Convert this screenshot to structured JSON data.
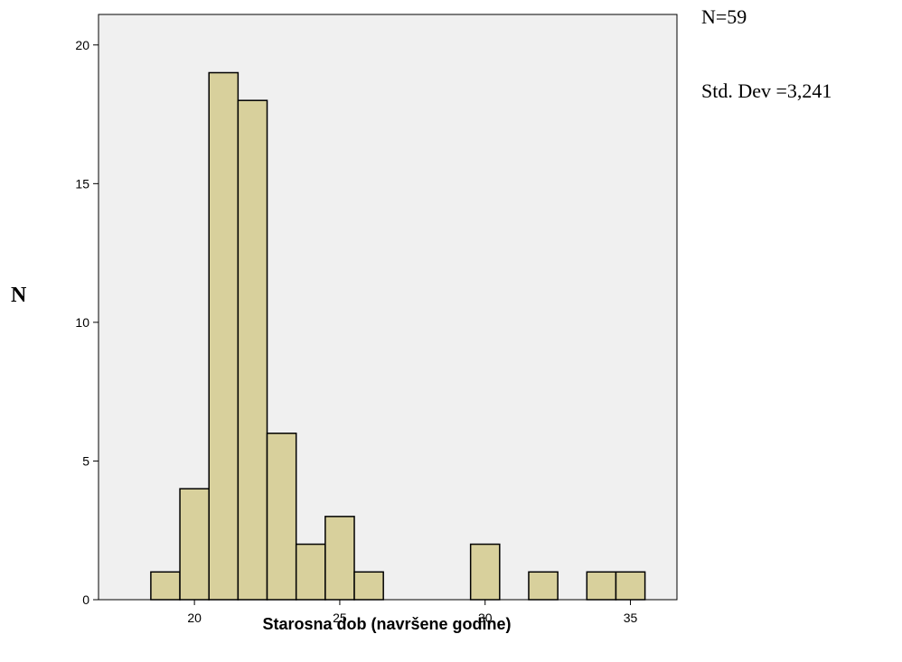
{
  "stats": {
    "n": "N=59",
    "std_dev": "Std. Dev =3,241"
  },
  "chart_data": {
    "type": "bar",
    "title": "",
    "xlabel": "Starosna dob (navršene godine)",
    "ylabel": "N",
    "xlim": [
      16.7,
      36.6
    ],
    "ylim": [
      0,
      21.1
    ],
    "x_ticks": [
      20,
      25,
      30,
      35
    ],
    "y_ticks": [
      0,
      5,
      10,
      15,
      20
    ],
    "bin_width": 1,
    "bin_centers": [
      19,
      20,
      21,
      22,
      23,
      24,
      25,
      26,
      30,
      32,
      34,
      35
    ],
    "values": [
      1,
      4,
      19,
      18,
      6,
      2,
      3,
      1,
      2,
      1,
      1,
      1
    ],
    "grid": false,
    "bar_color": "#d8d09c",
    "plot_background": "#f0f0f0"
  }
}
